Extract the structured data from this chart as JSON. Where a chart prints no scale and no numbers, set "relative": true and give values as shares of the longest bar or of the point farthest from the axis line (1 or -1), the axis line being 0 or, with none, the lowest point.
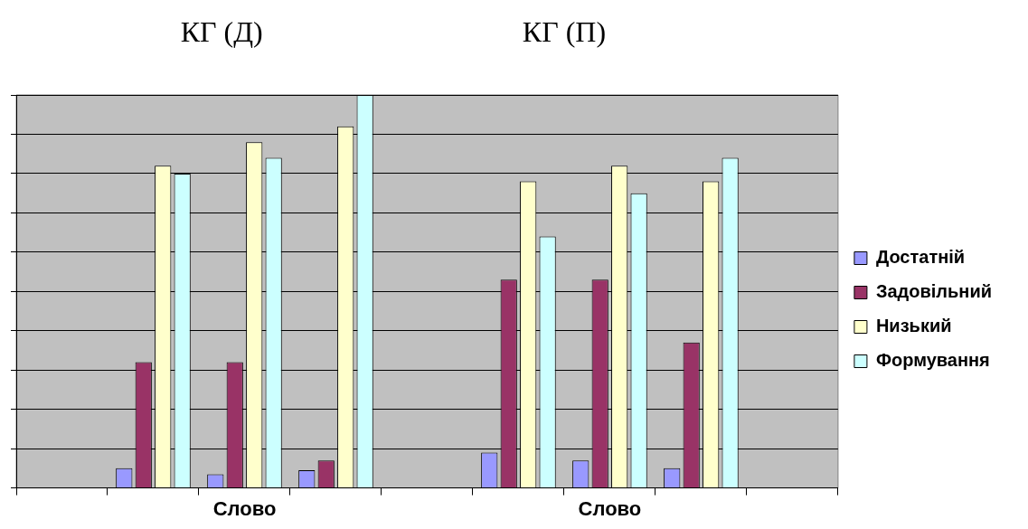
{
  "chart_data": {
    "type": "bar",
    "relative": true,
    "grid": "y",
    "legend": "right",
    "annotations": [
      "КГ (Д)",
      "КГ (П)"
    ],
    "categories": [
      null,
      null,
      "Слово",
      null,
      null,
      null,
      "Слово",
      null,
      null
    ],
    "series": [
      {
        "name": "Достатній",
        "color": "#9999ff",
        "values": [
          null,
          0.05,
          0.035,
          0.045,
          null,
          0.09,
          0.07,
          0.05,
          0
        ]
      },
      {
        "name": "Задовільний",
        "color": "#993366",
        "values": [
          null,
          0.32,
          0.32,
          0.07,
          null,
          0.53,
          0.53,
          0.37,
          null
        ]
      },
      {
        "name": "Низький",
        "color": "#ffffcc",
        "values": [
          null,
          0.82,
          0.88,
          0.92,
          null,
          0.78,
          0.82,
          0.78,
          null
        ]
      },
      {
        "name": "Формування",
        "color": "#ccffff",
        "values": [
          null,
          0.8,
          0.84,
          1,
          null,
          0.64,
          0.75,
          0.84,
          null
        ]
      }
    ]
  }
}
